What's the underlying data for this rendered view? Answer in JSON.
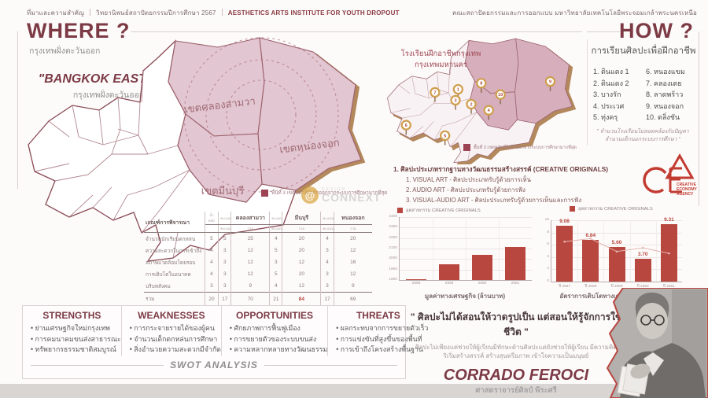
{
  "header": {
    "left_section": "ที่มาและความสำคัญ",
    "left_thesis": "วิทยานิพนธ์สถาปัตยกรรมปีการศึกษา 2567",
    "left_project": "AESTHETICS ARTS INSTITUTE FOR YOUTH DROPOUT",
    "right_faculty": "คณะสถาปัตยกรรมและการออกแบบ มหาวิทยาลัยเทคโนโลยีพระจอมเกล้าพระนครเหนือ"
  },
  "where": {
    "title": "WHERE ?",
    "subtitle": "กรุงเทพฝั่งตะวันออก",
    "area_quote": "\"BANGKOK EASTERN\"",
    "area_quote_sub": "กรุงเทพฝั่งตะวันออก",
    "district_labels": [
      "เขตคลองสามวา",
      "เขตหนองจอก",
      "เขตมีนบุรี"
    ],
    "legend": "พื้นที่ 3 เขตหลักที่มีเด็กออกจากระบบการศึกษามากที่สุด"
  },
  "middle_map": {
    "title_line1": "โรงเรียนฝึกอาชีพกรุงเทพ",
    "title_line2": "กรุงเทพมหานคร",
    "pins": [
      "1",
      "2",
      "3",
      "4",
      "5",
      "6",
      "7",
      "8",
      "9",
      "10"
    ],
    "legend": "พื้นที่ 3 เขตหลักที่มีเด็กออกจากระบบการศึกษามากที่สุด"
  },
  "how": {
    "title": "HOW ?",
    "subtitle": "การเรียนศิลปะเพื่อฝึกอาชีพ",
    "schools_col1": [
      "1. ดินแดง 1",
      "2. ดินแดง 2",
      "3. บางรัก",
      "4. ประเวศ",
      "5. ทุ่งครุ"
    ],
    "schools_col2": [
      "6. หนองแขม",
      "7. คลองเตย",
      "8. ลาดพร้าว",
      "9. หนองจอก",
      "10. ตลิ่งชัน"
    ],
    "note_line1": "\" จำนวนโรงเรียนไม่สอดคล้องกับปัญหา",
    "note_line2": "จำนวนเด็กนอกระบบการศึกษา \""
  },
  "creative": {
    "heading": "1. ศิลปะประเภทรากฐานทางวัฒนธรรมสร้างสรรค์ (CREATIVE ORIGINALS)",
    "items": [
      "1. VISUAL ART - ศิลปะประเภทรับรู้ด้วยการเห็น",
      "2. AUDIO ART - ศิลปะประเภทรับรู้ด้วยการฟัง",
      "3. VISUAL-AUDIO ART - ศิลปะประเภทรับรู้ด้วยการเห็นและการฟัง"
    ]
  },
  "cea": {
    "lines": [
      "CREATIVE",
      "ECONOMY",
      "AGENCY"
    ]
  },
  "site_table": {
    "criteria_header": "เกณฑ์การพิจารณา",
    "weight_header": "น้ำหนัก",
    "score_header": "คะแนน",
    "total_header": "รวม",
    "districts": [
      "คลองสามวา",
      "มีนบุรี",
      "หนองจอก"
    ],
    "rows": [
      {
        "criteria": "จำนวนนักเรียนตกหล่น",
        "weight": "5",
        "cells": [
          "5",
          "25",
          "4",
          "20",
          "4",
          "20"
        ]
      },
      {
        "criteria": "ความสะดวกในการเข้าถึง",
        "weight": "4",
        "cells": [
          "3",
          "12",
          "5",
          "20",
          "3",
          "12"
        ]
      },
      {
        "criteria": "สภาพแวดล้อมโดยรอบ",
        "weight": "4",
        "cells": [
          "3",
          "12",
          "3",
          "12",
          "4",
          "16"
        ]
      },
      {
        "criteria": "การเติบโตในอนาคต",
        "weight": "4",
        "cells": [
          "3",
          "12",
          "5",
          "20",
          "3",
          "12"
        ]
      },
      {
        "criteria": "บริบทสังคม",
        "weight": "3",
        "cells": [
          "3",
          "9",
          "4",
          "12",
          "3",
          "9"
        ]
      }
    ],
    "sum_row": {
      "label": "รวม",
      "weight": "20",
      "cells": [
        "17",
        "70",
        "21",
        "84",
        "17",
        "69"
      ],
      "highlight_cell_index": 3
    }
  },
  "chart_data": [
    {
      "type": "bar",
      "legend": "อุตสาหกรรม CREATIVE ORIGINALS",
      "categories": [
        "2558",
        "2559",
        "2560",
        "2561"
      ],
      "values": [
        1810,
        1950,
        2040,
        2115
      ],
      "xlabel": "มูลค่าทางเศรษฐกิจ (ล้านบาท)",
      "ylim": [
        1800,
        2400
      ],
      "ytick_step": 100,
      "grid": true,
      "bar_color": "#b8473f"
    },
    {
      "type": "bar",
      "legend": "อุตสาหกรรม CREATIVE ORIGINALS",
      "categories": [
        "ปี 2557",
        "ปี 2558",
        "ปี 2559",
        "ปี 2560",
        "ปี 2561"
      ],
      "series": [
        {
          "name": "อัตราการเติบโต",
          "type": "bar",
          "values": [
            9.08,
            6.84,
            5.6,
            3.7,
            9.31
          ],
          "labels": [
            "9.08",
            "6.84",
            "5.60",
            "3.70",
            "9.31"
          ]
        },
        {
          "name": "เส้นแนวโน้ม (จาง)",
          "type": "line",
          "values": [
            6.5,
            7.0,
            4.9,
            5.5,
            4.6
          ]
        }
      ],
      "xlabel": "อัตราการเติบโตทางเศรษฐกิจ (เปอร์เซ็นต์)",
      "ylim": [
        0,
        10
      ],
      "ytick_step": 2,
      "grid": true,
      "bar_color": "#b8473f"
    }
  ],
  "swot": {
    "footer": "SWOT ANALYSIS",
    "columns": [
      {
        "title": "STRENGTHS",
        "items": [
          "ย่านเศรษฐกิจใหม่กรุงเทพ",
          "การคมนาคมขนส่งสาธารณะ",
          "ทรัพยากรธรรมชาติสมบูรณ์"
        ]
      },
      {
        "title": "WEAKNESSES",
        "items": [
          "การกระจายรายได้ของผู้คน",
          "จำนวนเด็กตกหล่นการศึกษา",
          "สิ่งอำนวยความสะดวกมีจำกัด"
        ]
      },
      {
        "title": "OPPORTUNITIES",
        "items": [
          "ศักยภาพการฟื้นฟูเมือง",
          "การขยายตัวของระบบขนส่ง",
          "ความหลากหลายทางวัฒนธรรม"
        ]
      },
      {
        "title": "THREATS",
        "items": [
          "ผลกระทบจากการขยายตัวเร็ว",
          "การแข่งขันที่สูงขึ้นของพื้นที่",
          "การเข้าถึงโครงสร้างพื้นฐาน"
        ]
      }
    ]
  },
  "quote": {
    "main": "\" ศิลปะไม่ได้สอนให้วาดรูปเป็น แต่สอนให้รู้จักการใช้ชีวิต \"",
    "sub_line1": "ศิลปะไม่เพียงแค่ช่วยให้ผู้เรียนมีทักษะด้านศิลปะแต่ยังช่วยให้ผู้เรียน มีความคิด",
    "sub_line2": "ริเริ่มสร้างสรรค์ สร้างสุนทรียภาพ เข้าใจความเป็นมนุษย์",
    "name": "CORRADO FEROCI",
    "name_thai": "ศาสตราจารย์ศิลป์ พีระศรี"
  },
  "watermark": {
    "small": "DESIGN",
    "big": "CONNEXT"
  },
  "colors": {
    "maroon": "#7c3a45",
    "bar_red": "#b8473f",
    "pink": "#e2c6d1",
    "pink_dark": "#d6aebc",
    "tan": "#b3885c",
    "cea_red": "#c23b31"
  }
}
